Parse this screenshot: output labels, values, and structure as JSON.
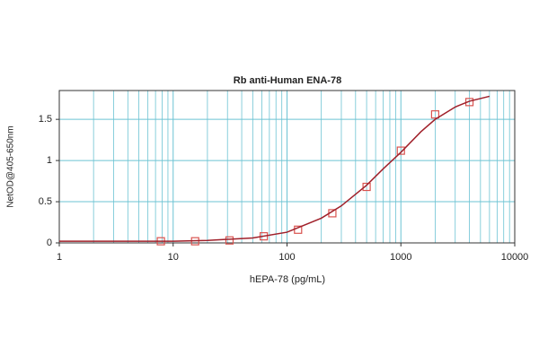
{
  "chart_data": {
    "type": "scatter",
    "title": "Rb anti-Human ENA-78",
    "x_label": "hEPA-78 (pg/mL)",
    "y_label": "NetOD@405-650nm",
    "xscale": "log",
    "xlim": [
      1,
      10000
    ],
    "xticks": [
      1,
      10,
      100,
      1000,
      10000
    ],
    "xminorticks": [
      2,
      3,
      4,
      5,
      6,
      7,
      8,
      9,
      20,
      30,
      40,
      50,
      60,
      70,
      80,
      90,
      200,
      300,
      400,
      500,
      600,
      700,
      800,
      900,
      2000,
      3000,
      4000,
      5000,
      6000,
      7000,
      8000,
      9000
    ],
    "ylim": [
      0,
      1.85
    ],
    "yticks": [
      0,
      0.5,
      1,
      1.5
    ],
    "grid": true,
    "grid_color": "#6cc3d3",
    "series": [
      {
        "kind": "points",
        "color": "#d9534f",
        "x": [
          7.8,
          15.6,
          31.25,
          62.5,
          125,
          250,
          500,
          1000,
          2000,
          4000
        ],
        "values": [
          0.02,
          0.02,
          0.03,
          0.08,
          0.16,
          0.36,
          0.68,
          1.12,
          1.56,
          1.71
        ]
      },
      {
        "kind": "line",
        "color": "#a0202a",
        "x": [
          1,
          2,
          5,
          10,
          20,
          50,
          100,
          200,
          300,
          500,
          700,
          1000,
          1500,
          2000,
          3000,
          4000,
          6000
        ],
        "values": [
          0.02,
          0.02,
          0.02,
          0.02,
          0.03,
          0.06,
          0.13,
          0.3,
          0.45,
          0.7,
          0.9,
          1.1,
          1.35,
          1.5,
          1.65,
          1.72,
          1.78
        ]
      }
    ]
  }
}
